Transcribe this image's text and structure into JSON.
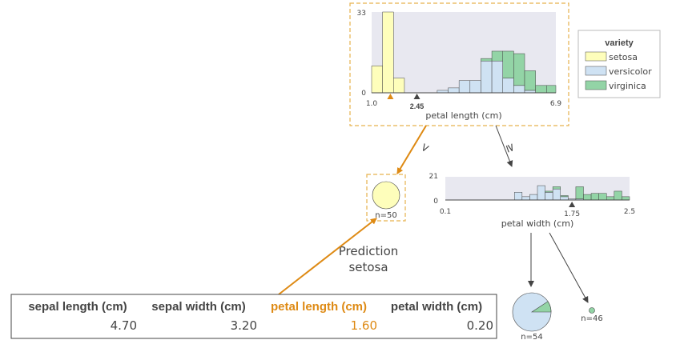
{
  "colors": {
    "setosa": "#fefebb",
    "versicolor": "#cfe2f3",
    "virginica": "#93d4a6",
    "highlight": "#de8a14",
    "box_border": "#e6b24e",
    "axis": "#444444",
    "plot_bg": "#e8e8f0"
  },
  "legend": {
    "title": "variety",
    "items": [
      {
        "label": "setosa",
        "color_key": "setosa"
      },
      {
        "label": "versicolor",
        "color_key": "versicolor"
      },
      {
        "label": "virginica",
        "color_key": "virginica"
      }
    ]
  },
  "root": {
    "feature_label": "petal length (cm)",
    "x_min_label": "1.0",
    "x_max_label": "6.9",
    "y_max_label": "33",
    "y_min_label": "0",
    "x_range": [
      1.0,
      6.9
    ],
    "y_max": 33,
    "split_label": "2.45",
    "split_value": 2.45,
    "sample_value": 1.6,
    "bins": [
      {
        "x0": 1.0,
        "x1": 1.35,
        "setosa": 11,
        "versicolor": 0,
        "virginica": 0
      },
      {
        "x0": 1.35,
        "x1": 1.7,
        "setosa": 33,
        "versicolor": 0,
        "virginica": 0
      },
      {
        "x0": 1.7,
        "x1": 2.05,
        "setosa": 6,
        "versicolor": 0,
        "virginica": 0
      },
      {
        "x0": 2.05,
        "x1": 2.4,
        "setosa": 0,
        "versicolor": 0,
        "virginica": 0
      },
      {
        "x0": 2.4,
        "x1": 2.75,
        "setosa": 0,
        "versicolor": 0,
        "virginica": 0
      },
      {
        "x0": 2.75,
        "x1": 3.1,
        "setosa": 0,
        "versicolor": 0,
        "virginica": 0
      },
      {
        "x0": 3.1,
        "x1": 3.45,
        "setosa": 0,
        "versicolor": 1,
        "virginica": 0
      },
      {
        "x0": 3.45,
        "x1": 3.8,
        "setosa": 0,
        "versicolor": 2,
        "virginica": 0
      },
      {
        "x0": 3.8,
        "x1": 4.15,
        "setosa": 0,
        "versicolor": 5,
        "virginica": 0
      },
      {
        "x0": 4.15,
        "x1": 4.5,
        "setosa": 0,
        "versicolor": 5,
        "virginica": 0
      },
      {
        "x0": 4.5,
        "x1": 4.85,
        "setosa": 0,
        "versicolor": 13,
        "virginica": 1
      },
      {
        "x0": 4.85,
        "x1": 5.2,
        "setosa": 0,
        "versicolor": 13,
        "virginica": 4
      },
      {
        "x0": 5.2,
        "x1": 5.55,
        "setosa": 0,
        "versicolor": 6,
        "virginica": 11
      },
      {
        "x0": 5.55,
        "x1": 5.9,
        "setosa": 0,
        "versicolor": 3,
        "virginica": 13
      },
      {
        "x0": 5.9,
        "x1": 6.25,
        "setosa": 0,
        "versicolor": 1,
        "virginica": 8
      },
      {
        "x0": 6.25,
        "x1": 6.6,
        "setosa": 0,
        "versicolor": 0,
        "virginica": 3
      },
      {
        "x0": 6.6,
        "x1": 6.9,
        "setosa": 0,
        "versicolor": 0,
        "virginica": 3
      }
    ]
  },
  "edges": {
    "left_label": "<",
    "right_label": "≥"
  },
  "left_leaf": {
    "label": "n=50",
    "n": 50,
    "class": "setosa"
  },
  "right_node": {
    "feature_label": "petal width (cm)",
    "x_min_label": "0.1",
    "x_max_label": "2.5",
    "y_max_label": "21",
    "y_min_label": "0",
    "x_range": [
      0.1,
      2.5
    ],
    "y_max": 21,
    "split_label": "1.75",
    "split_value": 1.75,
    "bins": [
      {
        "x0": 1.0,
        "x1": 1.1,
        "versicolor": 7,
        "virginica": 0
      },
      {
        "x0": 1.1,
        "x1": 1.2,
        "versicolor": 3,
        "virginica": 0
      },
      {
        "x0": 1.2,
        "x1": 1.3,
        "versicolor": 5,
        "virginica": 0
      },
      {
        "x0": 1.3,
        "x1": 1.4,
        "versicolor": 13,
        "virginica": 0
      },
      {
        "x0": 1.4,
        "x1": 1.5,
        "versicolor": 7,
        "virginica": 1
      },
      {
        "x0": 1.5,
        "x1": 1.6,
        "versicolor": 10,
        "virginica": 2
      },
      {
        "x0": 1.6,
        "x1": 1.7,
        "versicolor": 3,
        "virginica": 1
      },
      {
        "x0": 1.7,
        "x1": 1.8,
        "versicolor": 1,
        "virginica": 0
      },
      {
        "x0": 1.8,
        "x1": 1.9,
        "versicolor": 1,
        "virginica": 11
      },
      {
        "x0": 1.9,
        "x1": 2.0,
        "versicolor": 0,
        "virginica": 5
      },
      {
        "x0": 2.0,
        "x1": 2.1,
        "versicolor": 0,
        "virginica": 6
      },
      {
        "x0": 2.1,
        "x1": 2.2,
        "versicolor": 0,
        "virginica": 6
      },
      {
        "x0": 2.2,
        "x1": 2.3,
        "versicolor": 0,
        "virginica": 3
      },
      {
        "x0": 2.3,
        "x1": 2.4,
        "versicolor": 0,
        "virginica": 8
      },
      {
        "x0": 2.4,
        "x1": 2.5,
        "versicolor": 0,
        "virginica": 3
      }
    ]
  },
  "leaf_left_bottom": {
    "label": "n=54",
    "n": 54,
    "versicolor": 49,
    "virginica": 5
  },
  "leaf_right_bottom": {
    "label": "n=46",
    "n": 46,
    "versicolor": 1,
    "virginica": 45
  },
  "prediction": {
    "line1": "Prediction",
    "line2": "setosa"
  },
  "sample": {
    "headers": [
      "sepal length (cm)",
      "sepal width (cm)",
      "petal length (cm)",
      "petal width (cm)"
    ],
    "values": [
      "4.70",
      "3.20",
      "1.60",
      "0.20"
    ],
    "highlight_index": 2
  }
}
